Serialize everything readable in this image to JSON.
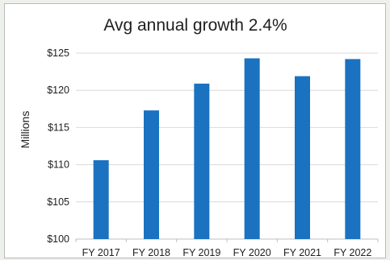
{
  "chart_data": {
    "type": "bar",
    "title": "Avg annual growth 2.4%",
    "xlabel": "",
    "ylabel": "Millions",
    "categories": [
      "FY 2017",
      "FY 2018",
      "FY 2019",
      "FY 2020",
      "FY 2021",
      "FY 2022"
    ],
    "values": [
      110.6,
      117.3,
      120.9,
      124.3,
      121.9,
      124.2
    ],
    "ylim": [
      100,
      125
    ],
    "yticks": [
      100,
      105,
      110,
      115,
      120,
      125
    ],
    "ytick_labels": [
      "$100",
      "$105",
      "$110",
      "$115",
      "$120",
      "$125"
    ],
    "grid": true,
    "legend": "none",
    "colors": {
      "bar": "#1a72c0",
      "grid": "#d9d9d9",
      "axis": "#bfbfbf"
    }
  }
}
